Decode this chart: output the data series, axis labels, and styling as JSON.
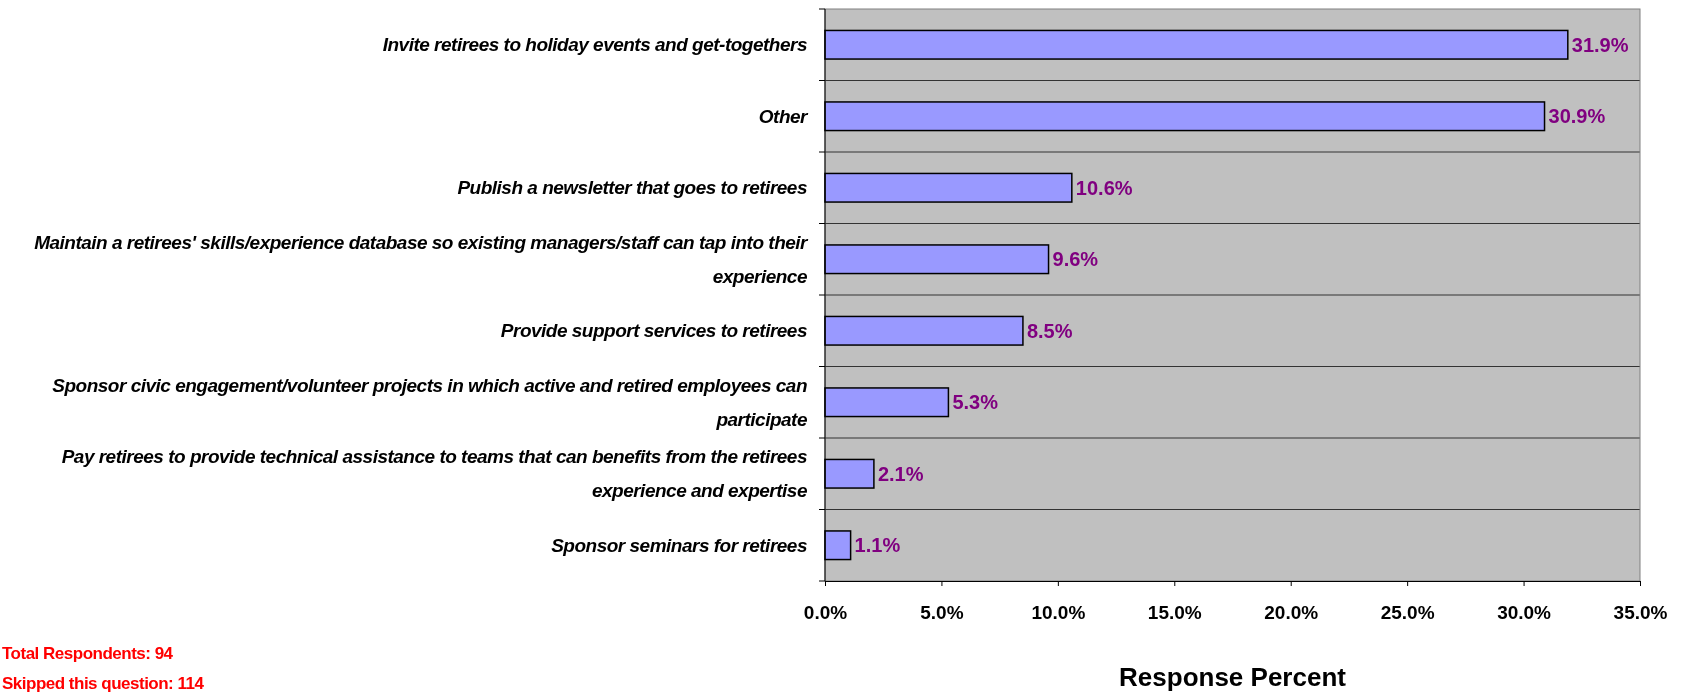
{
  "chart_data": {
    "type": "bar",
    "orientation": "horizontal",
    "xlabel": "Response Percent",
    "categories": [
      "Invite retirees to holiday events and get-togethers",
      "Other",
      "Publish a newsletter that goes to retirees",
      "Maintain a retirees' skills/experience database so existing managers/staff can tap into their experience",
      "Provide support services to retirees",
      "Sponsor civic engagement/volunteer projects in which active and retired employees can participate",
      "Pay retirees to provide technical assistance to teams that can benefits from the retirees experience and expertise",
      "Sponsor seminars for retirees"
    ],
    "values": [
      31.9,
      30.9,
      10.6,
      9.6,
      8.5,
      5.3,
      2.1,
      1.1
    ],
    "value_labels": [
      "31.9%",
      "30.9%",
      "10.6%",
      "9.6%",
      "8.5%",
      "5.3%",
      "2.1%",
      "1.1%"
    ],
    "color": "#9999ff",
    "xlim": [
      0,
      35
    ],
    "xticks": [
      {
        "value": 0,
        "label": "0.0%"
      },
      {
        "value": 5,
        "label": "5.0%"
      },
      {
        "value": 10,
        "label": "10.0%"
      },
      {
        "value": 15,
        "label": "15.0%"
      },
      {
        "value": 20,
        "label": "20.0%"
      },
      {
        "value": 25,
        "label": "25.0%"
      },
      {
        "value": 30,
        "label": "30.0%"
      },
      {
        "value": 35,
        "label": "35.0%"
      }
    ],
    "grid": "y",
    "annotations": [
      "Total Respondents: 94",
      "Skipped this question: 114"
    ]
  }
}
